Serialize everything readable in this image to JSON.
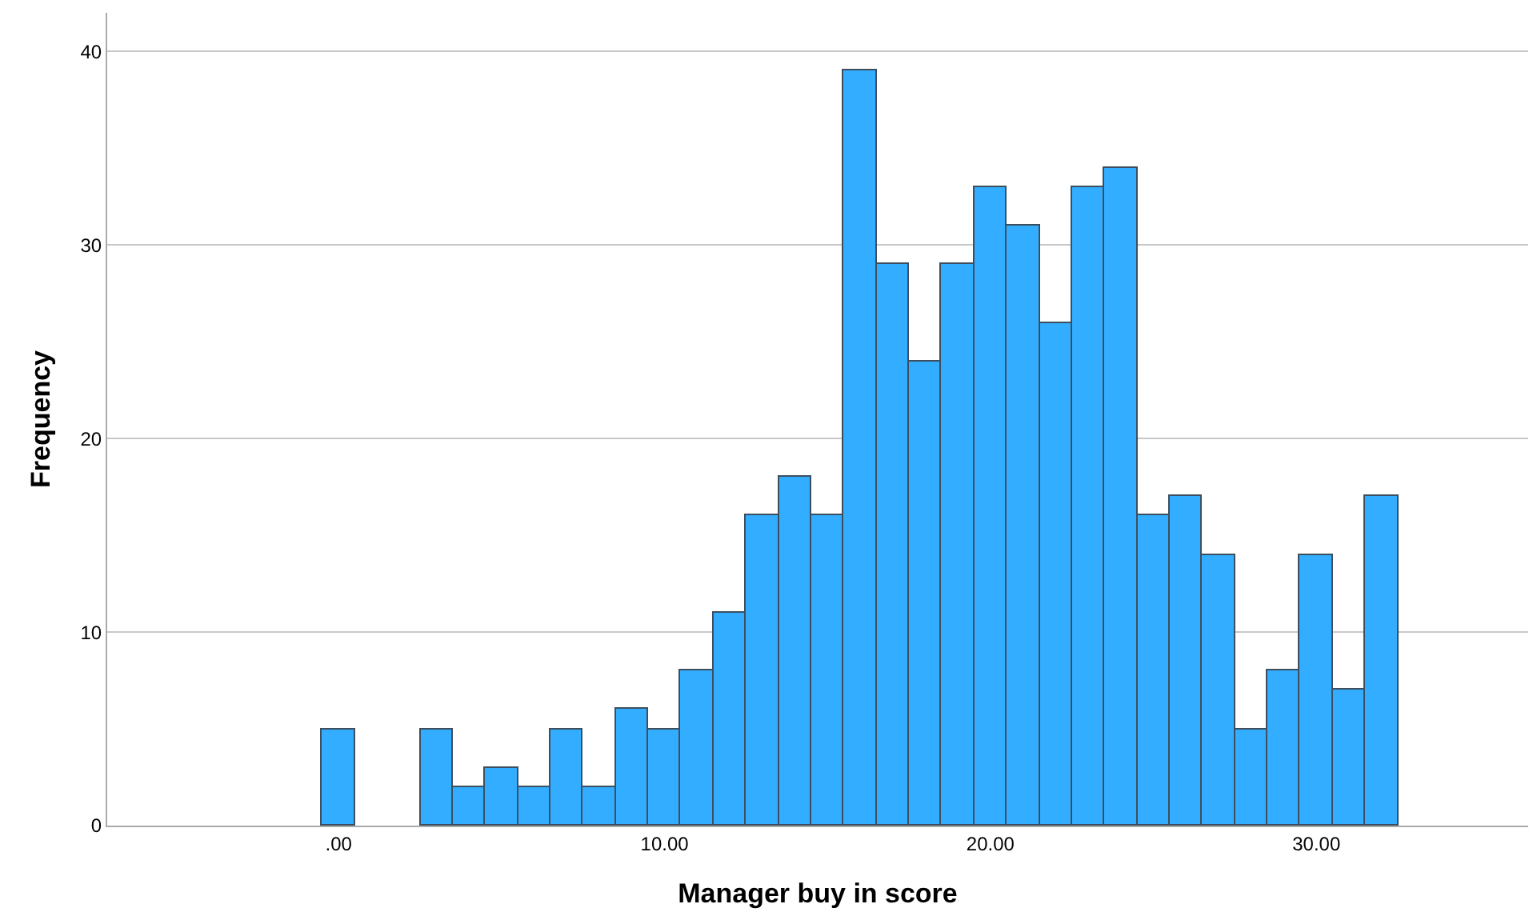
{
  "chart_data": {
    "type": "histogram",
    "xlabel": "Manager buy in score",
    "ylabel": "Frequency",
    "bins": [
      -0.5,
      0.5,
      1.5,
      2.5,
      3.5,
      4.5,
      5.5,
      6.5,
      7.5,
      8.5,
      9.5,
      10.5,
      11.5,
      12.5,
      13.5,
      14.5,
      15.5,
      16.5,
      17.5,
      18.5,
      19.5,
      20.5,
      21.5,
      22.5,
      23.5,
      24.5,
      25.5,
      26.5,
      27.5,
      28.5,
      29.5,
      30.5,
      31.5,
      32.5
    ],
    "values": [
      5,
      0,
      0,
      5,
      2,
      3,
      2,
      5,
      2,
      6,
      5,
      8,
      11,
      16,
      18,
      16,
      39,
      29,
      24,
      29,
      33,
      31,
      26,
      33,
      34,
      16,
      17,
      14,
      5,
      8,
      14,
      7,
      17
    ],
    "color": "#33adff",
    "xlim": [
      -7.1,
      36.5
    ],
    "ylim": [
      0,
      42
    ],
    "xticks": [
      {
        "value": 0,
        "label": ".00"
      },
      {
        "value": 10,
        "label": "10.00"
      },
      {
        "value": 20,
        "label": "20.00"
      },
      {
        "value": 30,
        "label": "30.00"
      }
    ],
    "yticks": [
      0,
      10,
      20,
      30,
      40
    ],
    "grid": "y"
  }
}
